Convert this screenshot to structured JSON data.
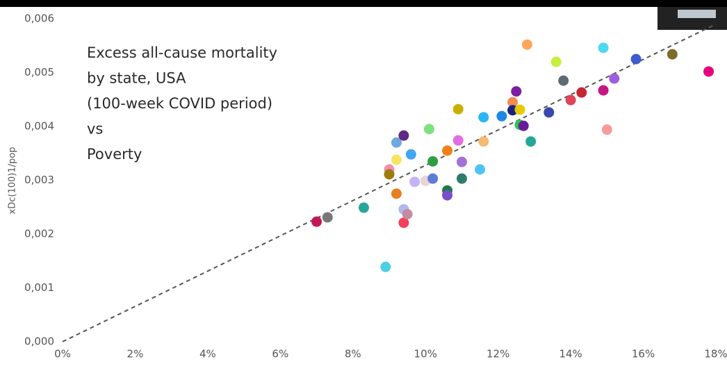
{
  "chart_data": {
    "type": "scatter",
    "title": [
      "Excess all-cause mortality",
      "by state, USA",
      "(100-week COVID period)",
      "vs",
      "Poverty"
    ],
    "y_label": "xDc(100)1/pop",
    "x": [
      7.0,
      7.3,
      8.3,
      8.9,
      9.0,
      9.0,
      9.2,
      9.2,
      9.2,
      9.4,
      9.4,
      9.4,
      9.5,
      9.6,
      9.7,
      10.0,
      10.1,
      10.2,
      10.2,
      10.6,
      10.6,
      10.6,
      10.9,
      10.9,
      11.0,
      11.0,
      11.5,
      11.6,
      11.6,
      12.1,
      12.4,
      12.4,
      12.5,
      12.6,
      12.6,
      12.7,
      12.8,
      12.9,
      13.4,
      13.6,
      13.8,
      14.0,
      14.3,
      14.9,
      14.9,
      15.0,
      15.2,
      15.8,
      16.8,
      17.8
    ],
    "values": [
      0.00223,
      0.00231,
      0.00249,
      0.00139,
      0.0032,
      0.00311,
      0.00275,
      0.0037,
      0.00338,
      0.00383,
      0.00246,
      0.00221,
      0.00237,
      0.00348,
      0.00297,
      0.00299,
      0.00395,
      0.00335,
      0.00303,
      0.00355,
      0.00281,
      0.00272,
      0.00432,
      0.00374,
      0.00334,
      0.00303,
      0.0032,
      0.00372,
      0.00417,
      0.00419,
      0.00445,
      0.0043,
      0.00465,
      0.00431,
      0.00403,
      0.00401,
      0.00552,
      0.00372,
      0.00426,
      0.0052,
      0.00485,
      0.00449,
      0.00463,
      0.00546,
      0.00467,
      0.00394,
      0.00489,
      0.00525,
      0.00534,
      0.00502
    ],
    "colors": [
      "#c2185b",
      "#777777",
      "#26a69a",
      "#4dd0e1",
      "#f48fb1",
      "#9e7c0c",
      "#e67e22",
      "#6fa8dc",
      "#f7e463",
      "#5e2a84",
      "#b0b8ec",
      "#f43f5e",
      "#c48b9f",
      "#42a5f5",
      "#c5b3f5",
      "#e8d5d5",
      "#7ee07e",
      "#2e9e44",
      "#5c7cd6",
      "#f07f18",
      "#1b7a4a",
      "#7b4fc9",
      "#c9b000",
      "#e36ee3",
      "#a370db",
      "#2e7d6b",
      "#4fc3f7",
      "#f5b971",
      "#29b6f6",
      "#1e88e5",
      "#f28c55",
      "#1a237e",
      "#7b1fa2",
      "#e5cc00",
      "#2dc653",
      "#6a1b9a",
      "#ffa65c",
      "#26a69a",
      "#3949ab",
      "#c6ef3f",
      "#5f6b73",
      "#e0435a",
      "#c62833",
      "#4dd8f0",
      "#c71585",
      "#f79a9a",
      "#9c5fde",
      "#3d5ccf",
      "#7d6b2a",
      "#e6007e"
    ],
    "trendline": {
      "x": [
        0,
        18
      ],
      "y": [
        0,
        0.0059
      ],
      "color": "#555555"
    },
    "xlim": [
      0,
      18
    ],
    "xticks": [
      {
        "value": 0,
        "label": "0%"
      },
      {
        "value": 2,
        "label": "2%"
      },
      {
        "value": 4,
        "label": "4%"
      },
      {
        "value": 6,
        "label": "6%"
      },
      {
        "value": 8,
        "label": "8%"
      },
      {
        "value": 10,
        "label": "10%"
      },
      {
        "value": 12,
        "label": "12%"
      },
      {
        "value": 14,
        "label": "14%"
      },
      {
        "value": 16,
        "label": "16%"
      },
      {
        "value": 18,
        "label": "18%"
      }
    ],
    "ylim": [
      0,
      0.006
    ],
    "yticks": [
      {
        "value": 0,
        "label": "0,000"
      },
      {
        "value": 0.001,
        "label": "0,001"
      },
      {
        "value": 0.002,
        "label": "0,002"
      },
      {
        "value": 0.003,
        "label": "0,003"
      },
      {
        "value": 0.004,
        "label": "0,004"
      },
      {
        "value": 0.005,
        "label": "0,005"
      },
      {
        "value": 0.006,
        "label": "0,006"
      }
    ]
  }
}
